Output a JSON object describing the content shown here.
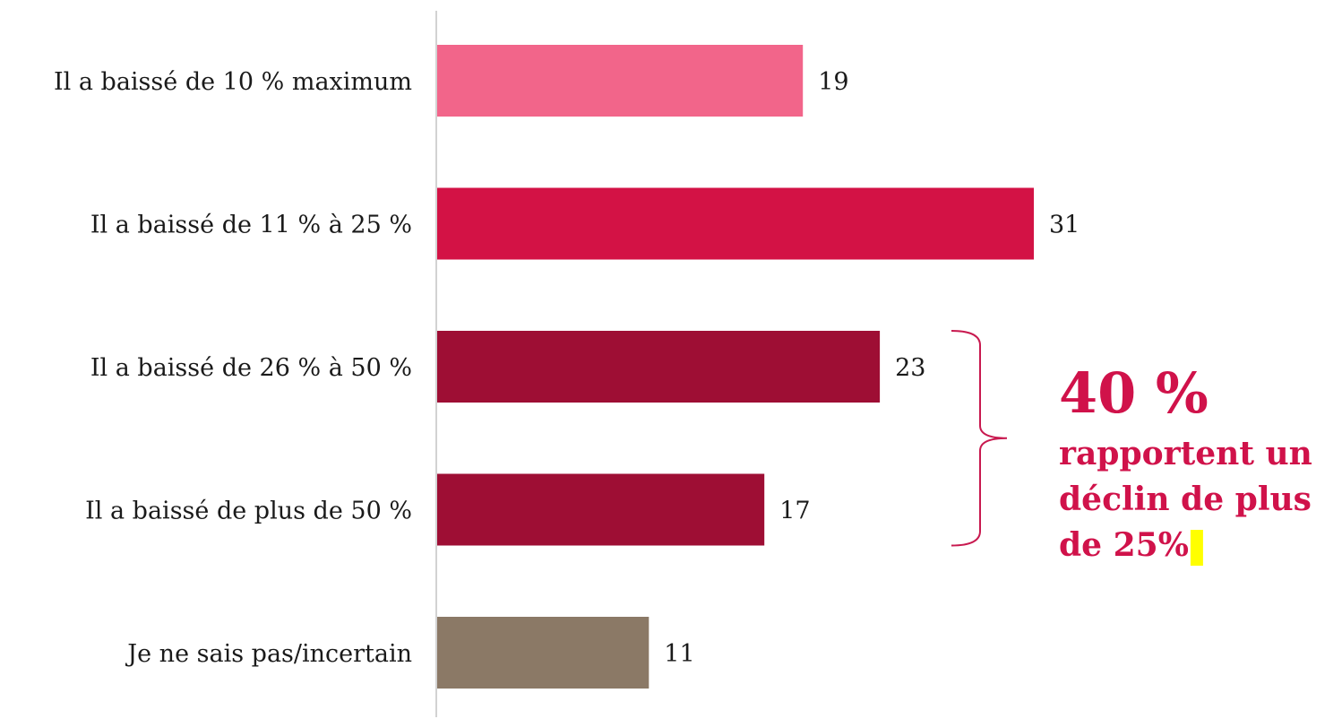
{
  "chart_data": {
    "type": "bar",
    "orientation": "horizontal",
    "categories": [
      "Il a baissé de 10 % maximum",
      "Il a baissé de 11 % à 25 %",
      "Il a baissé de 26 % à 50 %",
      "Il a baissé de plus de 50 %",
      "Je ne sais pas/incertain"
    ],
    "values": [
      19,
      31,
      23,
      17,
      11
    ],
    "value_labels": [
      "19",
      "31",
      "23",
      "17",
      "11"
    ],
    "bar_colors": [
      "#f2658a",
      "#d31245",
      "#9e0e34",
      "#9e0e34",
      "#8b7966"
    ],
    "xlim": [
      0,
      31
    ],
    "grid": false,
    "legend": "none",
    "annotation": {
      "big": "40 %",
      "lines": [
        "rapportent un",
        "déclin de plus",
        "de 25%"
      ],
      "spans_categories": [
        2,
        3
      ],
      "color": "#d0124a",
      "highlight_color": "#ffff00"
    }
  }
}
